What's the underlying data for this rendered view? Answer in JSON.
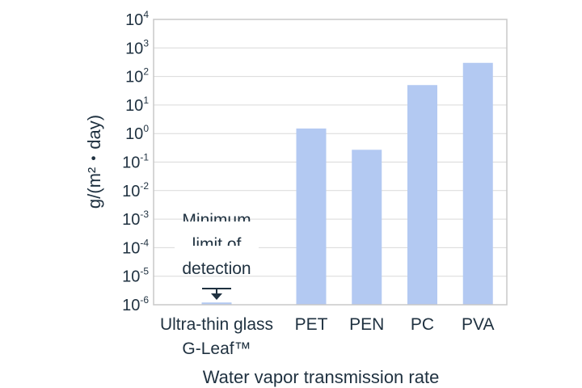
{
  "chart_data": {
    "type": "bar",
    "title": "",
    "xlabel": "Water vapor transmission rate",
    "ylabel": "g/(m²・day)",
    "yscale": "log",
    "ylim": [
      1e-06,
      10000
    ],
    "grid": true,
    "y_ticks": [
      {
        "base": "10",
        "exp": "4"
      },
      {
        "base": "10",
        "exp": "3"
      },
      {
        "base": "10",
        "exp": "2"
      },
      {
        "base": "10",
        "exp": "1"
      },
      {
        "base": "10",
        "exp": "0"
      },
      {
        "base": "10",
        "exp": "-1"
      },
      {
        "base": "10",
        "exp": "-2"
      },
      {
        "base": "10",
        "exp": "-3"
      },
      {
        "base": "10",
        "exp": "-4"
      },
      {
        "base": "10",
        "exp": "-5"
      },
      {
        "base": "10",
        "exp": "-6"
      }
    ],
    "categories": [
      {
        "line1": "Ultra-thin glass",
        "line2": "G-Leaf™"
      },
      {
        "line1": "PET",
        "line2": ""
      },
      {
        "line1": "PEN",
        "line2": ""
      },
      {
        "line1": "PC",
        "line2": ""
      },
      {
        "line1": "PVA",
        "line2": ""
      }
    ],
    "values": [
      1.2e-06,
      1.5,
      0.27,
      50,
      300
    ],
    "bar_color": "#b3c9f2",
    "annotation": {
      "lines": [
        "Minimum",
        "limit of",
        "detection"
      ],
      "category_index": 0,
      "marker": "down-arrow-icon"
    }
  },
  "colors": {
    "bar": "#b3c9f2",
    "grid": "#d9d9d9",
    "frame": "#c8c8c8",
    "text": "#1f3140"
  }
}
